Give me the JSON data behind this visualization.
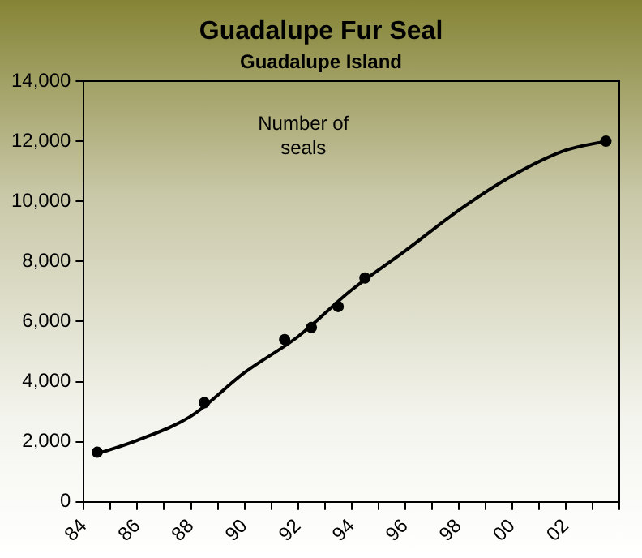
{
  "chart_data": {
    "type": "scatter",
    "title": "Guadalupe Fur Seal",
    "subtitle": "Guadalupe Island",
    "annotations": [
      "Number of seals"
    ],
    "xlim": [
      1984,
      2004
    ],
    "xticks": [
      {
        "value": 1984,
        "label": "84"
      },
      {
        "value": 1985,
        "label": null
      },
      {
        "value": 1986,
        "label": "86"
      },
      {
        "value": 1987,
        "label": null
      },
      {
        "value": 1988,
        "label": "88"
      },
      {
        "value": 1989,
        "label": null
      },
      {
        "value": 1990,
        "label": "90"
      },
      {
        "value": 1991,
        "label": null
      },
      {
        "value": 1992,
        "label": "92"
      },
      {
        "value": 1993,
        "label": null
      },
      {
        "value": 1994,
        "label": "94"
      },
      {
        "value": 1995,
        "label": null
      },
      {
        "value": 1996,
        "label": "96"
      },
      {
        "value": 1997,
        "label": null
      },
      {
        "value": 1998,
        "label": "98"
      },
      {
        "value": 1999,
        "label": null
      },
      {
        "value": 2000,
        "label": "00"
      },
      {
        "value": 2001,
        "label": null
      },
      {
        "value": 2002,
        "label": "02"
      },
      {
        "value": 2003,
        "label": null
      },
      {
        "value": 2004,
        "label": null
      }
    ],
    "ylim": [
      0,
      14000
    ],
    "yticks": [
      {
        "value": 0,
        "label": "0"
      },
      {
        "value": 2000,
        "label": "2,000"
      },
      {
        "value": 4000,
        "label": "4,000"
      },
      {
        "value": 6000,
        "label": "6,000"
      },
      {
        "value": 8000,
        "label": "8,000"
      },
      {
        "value": 10000,
        "label": "10,000"
      },
      {
        "value": 12000,
        "label": "12,000"
      },
      {
        "value": 14000,
        "label": "14,000"
      }
    ],
    "grid": false,
    "legend": false,
    "marker": "circle",
    "series": [
      {
        "type": "line",
        "color": "#000000",
        "marker": "none",
        "x": [
          1984.5,
          1986,
          1988,
          1990,
          1992,
          1994,
          1996,
          1998,
          2000,
          2002,
          2003.5
        ],
        "values": [
          1600,
          2050,
          2850,
          4300,
          5500,
          7050,
          8350,
          9700,
          10850,
          11700,
          12000
        ]
      },
      {
        "type": "scatter",
        "color": "#000000",
        "x": [
          1984.5,
          1988.5,
          1991.5,
          1992.5,
          1993.5,
          1994.5,
          2003.5
        ],
        "values": [
          1650,
          3300,
          5400,
          5800,
          6500,
          7450,
          12000
        ]
      }
    ]
  }
}
